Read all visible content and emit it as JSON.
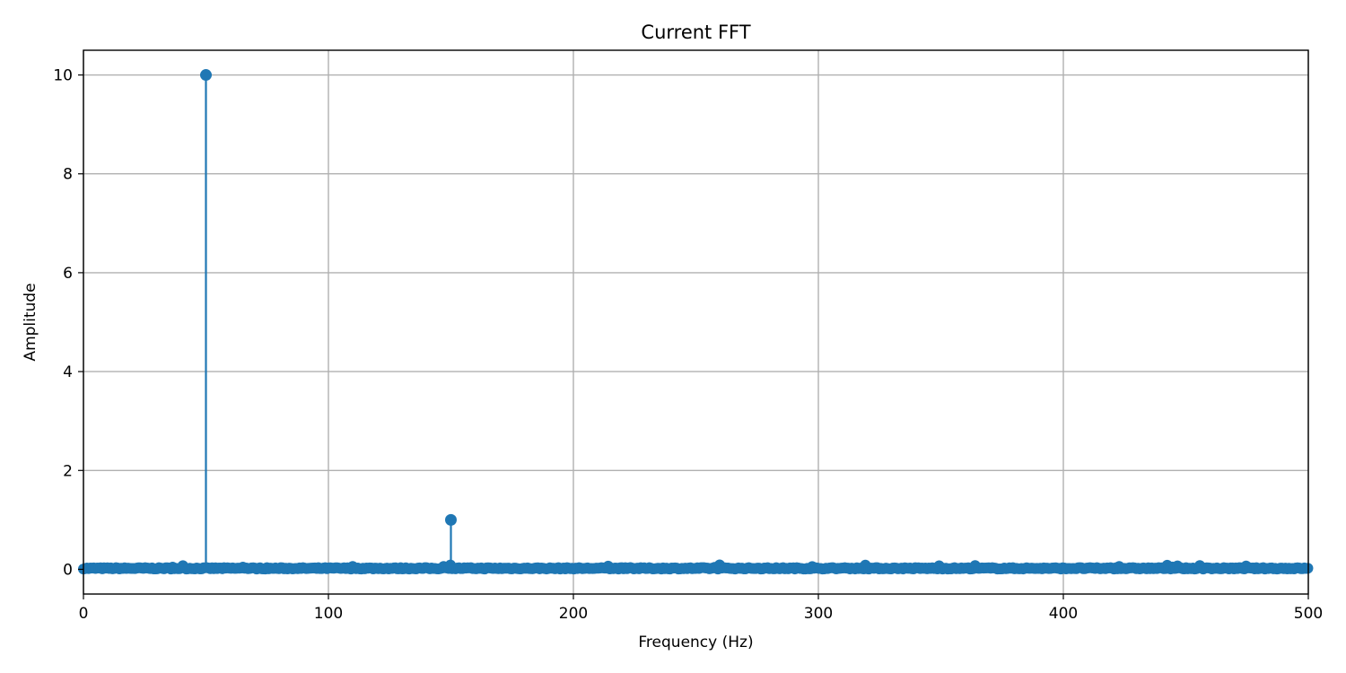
{
  "chart_data": {
    "type": "stem",
    "title": "Current FFT",
    "xlabel": "Frequency (Hz)",
    "ylabel": "Amplitude",
    "xlim": [
      0,
      500
    ],
    "ylim": [
      -0.5,
      10.5
    ],
    "xticks": [
      0,
      100,
      200,
      300,
      400,
      500
    ],
    "yticks": [
      0,
      2,
      4,
      6,
      8,
      10
    ],
    "grid": true,
    "color": "#1f77b4",
    "peaks": [
      {
        "x": 50,
        "y": 10.0
      },
      {
        "x": 150,
        "y": 1.0
      }
    ],
    "noise_floor": {
      "x_range": [
        0,
        500
      ],
      "y_approx": 0.02,
      "y_max_approx": 0.06
    }
  }
}
